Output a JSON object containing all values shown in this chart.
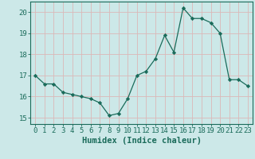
{
  "x": [
    0,
    1,
    2,
    3,
    4,
    5,
    6,
    7,
    8,
    9,
    10,
    11,
    12,
    13,
    14,
    15,
    16,
    17,
    18,
    19,
    20,
    21,
    22,
    23
  ],
  "y": [
    17.0,
    16.6,
    16.6,
    16.2,
    16.1,
    16.0,
    15.9,
    15.7,
    15.1,
    15.2,
    15.9,
    17.0,
    17.2,
    17.8,
    18.9,
    18.1,
    20.2,
    19.7,
    19.7,
    19.5,
    19.0,
    16.8,
    16.8,
    16.5
  ],
  "title": "",
  "xlabel": "Humidex (Indice chaleur)",
  "ylabel": "",
  "xlim": [
    -0.5,
    23.5
  ],
  "ylim": [
    14.7,
    20.5
  ],
  "yticks": [
    15,
    16,
    17,
    18,
    19,
    20
  ],
  "xticks": [
    0,
    1,
    2,
    3,
    4,
    5,
    6,
    7,
    8,
    9,
    10,
    11,
    12,
    13,
    14,
    15,
    16,
    17,
    18,
    19,
    20,
    21,
    22,
    23
  ],
  "line_color": "#1a6b5a",
  "marker": "D",
  "marker_size": 2.2,
  "bg_color": "#cce8e8",
  "grid_color": "#dbb8b8",
  "axes_color": "#1a6b5a",
  "tick_label_color": "#1a6b5a",
  "xlabel_color": "#1a6b5a",
  "xlabel_fontsize": 7.5,
  "tick_fontsize": 6.5
}
